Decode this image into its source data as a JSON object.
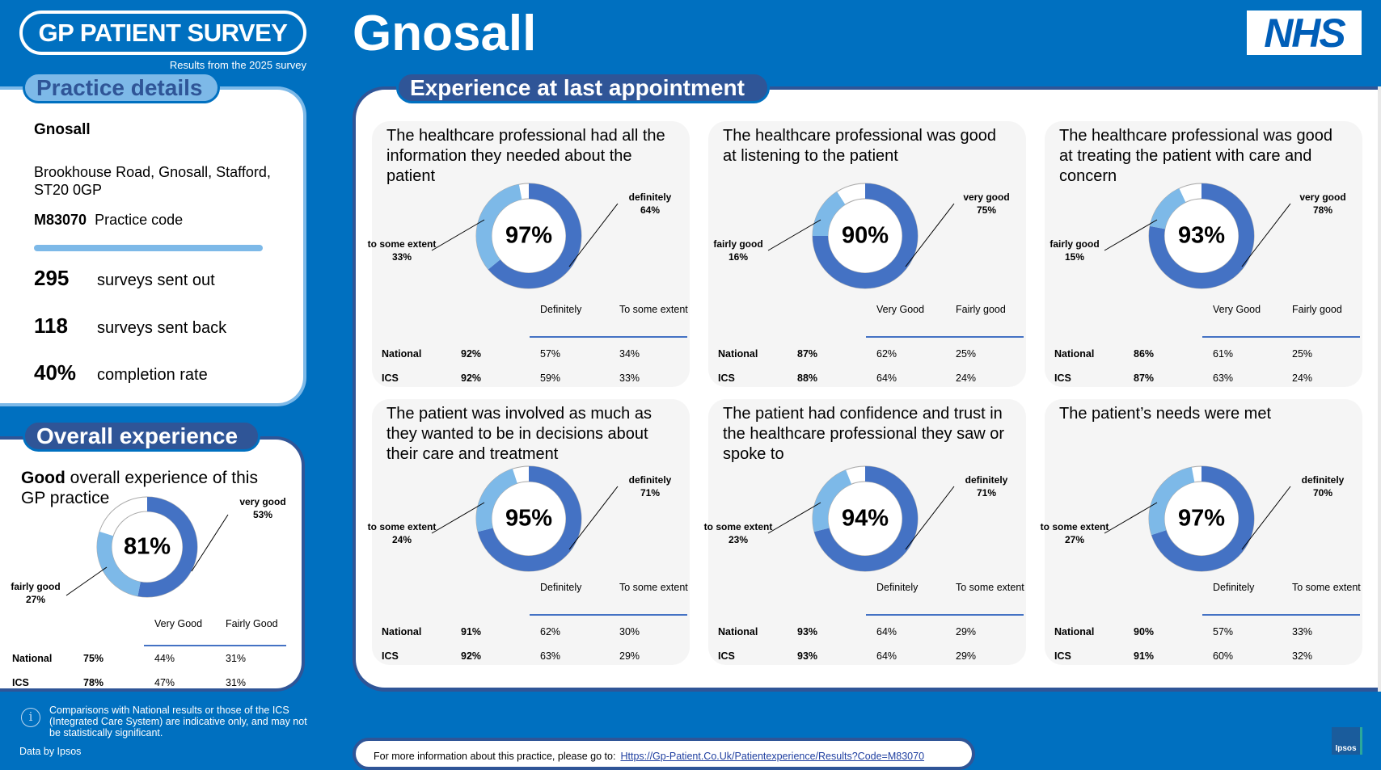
{
  "header": {
    "brand": "GP PATIENT SURVEY",
    "subtitle": "Results from the 2025 survey",
    "practice_title": "Gnosall",
    "nhs_logo": "NHS"
  },
  "practice_details": {
    "tab_label": "Practice details",
    "name": "Gnosall",
    "address": "Brookhouse Road, Gnosall, Stafford, ST20 0GP",
    "code": "M83070",
    "code_label": "Practice code",
    "stats": [
      {
        "value": "295",
        "label": "surveys sent out"
      },
      {
        "value": "118",
        "label": "surveys sent back"
      },
      {
        "value": "40%",
        "label": "completion rate"
      }
    ]
  },
  "overall": {
    "tab_label": "Overall experience",
    "title_bold": "Good",
    "title_rest": " overall experience of this GP practice",
    "total": "81%",
    "segments": [
      {
        "label": "very good",
        "display": "53%",
        "value": 53
      },
      {
        "label": "fairly good",
        "display": "27%",
        "value": 27
      }
    ],
    "headers": [
      "Very Good",
      "Fairly Good"
    ],
    "rows": [
      {
        "name": "National",
        "total": "75%",
        "a": "44%",
        "b": "31%"
      },
      {
        "name": "ICS",
        "total": "78%",
        "a": "47%",
        "b": "31%"
      }
    ]
  },
  "main": {
    "tab_label": "Experience at last appointment"
  },
  "colors": {
    "background": "#0070c0",
    "navy": "#2f5597",
    "primary_segment": "#4472c4",
    "secondary_segment": "#7db9e8",
    "card": "#f5f5f5"
  },
  "cards": [
    {
      "title": "The healthcare professional had all the information they needed about the patient",
      "total": "97%",
      "segments": [
        {
          "label": "definitely",
          "display": "64%",
          "value": 64
        },
        {
          "label": "to some extent",
          "display": "33%",
          "value": 33
        }
      ],
      "headers": [
        "Definitely",
        "To some extent"
      ],
      "rows": [
        {
          "name": "National",
          "total": "92%",
          "a": "57%",
          "b": "34%"
        },
        {
          "name": "ICS",
          "total": "92%",
          "a": "59%",
          "b": "33%"
        }
      ]
    },
    {
      "title": "The healthcare professional was good at listening to the patient",
      "total": "90%",
      "segments": [
        {
          "label": "very good",
          "display": "75%",
          "value": 75
        },
        {
          "label": "fairly good",
          "display": "16%",
          "value": 16
        }
      ],
      "headers": [
        "Very Good",
        "Fairly good"
      ],
      "rows": [
        {
          "name": "National",
          "total": "87%",
          "a": "62%",
          "b": "25%"
        },
        {
          "name": "ICS",
          "total": "88%",
          "a": "64%",
          "b": "24%"
        }
      ]
    },
    {
      "title": "The healthcare professional was good at treating the patient with care and concern",
      "total": "93%",
      "segments": [
        {
          "label": "very good",
          "display": "78%",
          "value": 78
        },
        {
          "label": "fairly good",
          "display": "15%",
          "value": 15
        }
      ],
      "headers": [
        "Very Good",
        "Fairly good"
      ],
      "rows": [
        {
          "name": "National",
          "total": "86%",
          "a": "61%",
          "b": "25%"
        },
        {
          "name": "ICS",
          "total": "87%",
          "a": "63%",
          "b": "24%"
        }
      ]
    },
    {
      "title": "The patient was involved as much as they wanted to be in decisions about their care and treatment",
      "total": "95%",
      "segments": [
        {
          "label": "definitely",
          "display": "71%",
          "value": 71
        },
        {
          "label": "to some extent",
          "display": "24%",
          "value": 24
        }
      ],
      "headers": [
        "Definitely",
        "To some extent"
      ],
      "rows": [
        {
          "name": "National",
          "total": "91%",
          "a": "62%",
          "b": "30%"
        },
        {
          "name": "ICS",
          "total": "92%",
          "a": "63%",
          "b": "29%"
        }
      ]
    },
    {
      "title": "The patient had confidence and trust in the healthcare professional they saw or spoke to",
      "total": "94%",
      "segments": [
        {
          "label": "definitely",
          "display": "71%",
          "value": 71
        },
        {
          "label": "to some extent",
          "display": "23%",
          "value": 23
        }
      ],
      "headers": [
        "Definitely",
        "To some extent"
      ],
      "rows": [
        {
          "name": "National",
          "total": "93%",
          "a": "64%",
          "b": "29%"
        },
        {
          "name": "ICS",
          "total": "93%",
          "a": "64%",
          "b": "29%"
        }
      ]
    },
    {
      "title": "The patient’s needs were met",
      "total": "97%",
      "segments": [
        {
          "label": "definitely",
          "display": "70%",
          "value": 70
        },
        {
          "label": "to some extent",
          "display": "27%",
          "value": 27
        }
      ],
      "headers": [
        "Definitely",
        "To some extent"
      ],
      "rows": [
        {
          "name": "National",
          "total": "90%",
          "a": "57%",
          "b": "33%"
        },
        {
          "name": "ICS",
          "total": "91%",
          "a": "60%",
          "b": "32%"
        }
      ]
    }
  ],
  "footer": {
    "note": "Comparisons with National results or those of the ICS (Integrated Care System) are indicative only, and may not be statistically significant.",
    "data_by": "Data by Ipsos",
    "more_info": "For more information about this practice, please go to:",
    "link": "Https://Gp-Patient.Co.Uk/Patientexperience/Results?Code=M83070",
    "ipsos_logo": "Ipsos"
  }
}
